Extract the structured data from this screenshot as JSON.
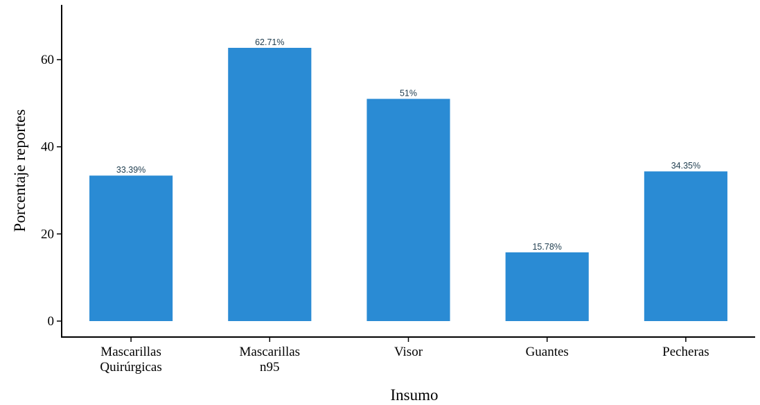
{
  "chart_data": {
    "type": "bar",
    "categories": [
      [
        "Mascarillas",
        "Quirúrgicas"
      ],
      [
        "Mascarillas",
        "n95"
      ],
      [
        "Visor"
      ],
      [
        "Guantes"
      ],
      [
        "Pecheras"
      ]
    ],
    "values": [
      33.39,
      62.71,
      51,
      15.78,
      34.35
    ],
    "data_labels": [
      "33.39%",
      "62.71%",
      "51%",
      "15.78%",
      "34.35%"
    ],
    "xlabel": "Insumo",
    "ylabel": "Porcentaje reportes",
    "ylim": [
      0,
      72
    ],
    "yticks": [
      0,
      20,
      40,
      60
    ],
    "grid": false,
    "bar_color": "#2a8bd4"
  }
}
